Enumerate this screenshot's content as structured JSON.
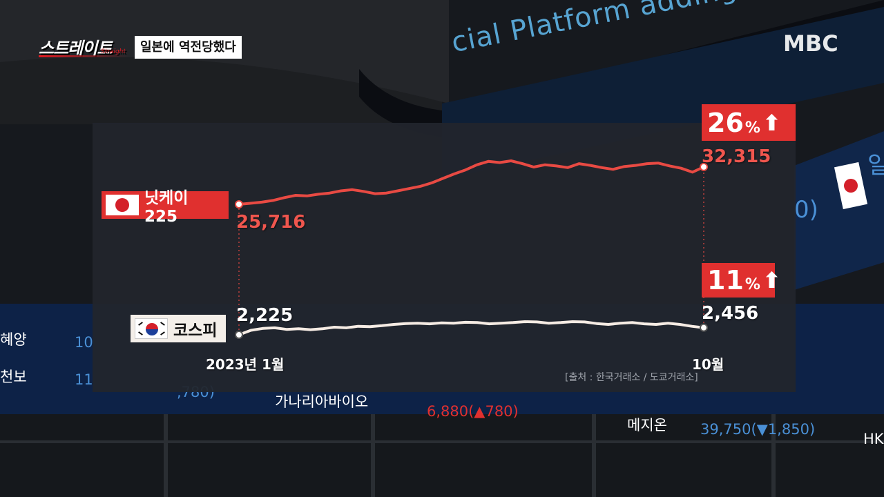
{
  "show": {
    "logo": "스트레이트",
    "logo_sub": "Straight",
    "episode_title": "일본에 역전당했다"
  },
  "broadcaster": "MBC",
  "background": {
    "scrolling_text": "cial Platform adding Value through In",
    "ticker": [
      {
        "text": "혜양",
        "color": "#ffffff"
      },
      {
        "text": "10",
        "color": "#4a90d6"
      },
      {
        "text": "천보",
        "color": "#ffffff"
      },
      {
        "text": "11",
        "color": "#4a90d6"
      },
      {
        "text": ",780)",
        "color": "#4a90d6"
      },
      {
        "text": "가나리아바이오",
        "color": "#ffffff"
      },
      {
        "text": "6,880(▲780)",
        "color": "#e0302f"
      },
      {
        "text": "메지온",
        "color": "#ffffff"
      },
      {
        "text": "39,750(▼1,850)",
        "color": "#4a90d6"
      },
      {
        "text": "HK",
        "color": "#ffffff"
      }
    ],
    "side_text": [
      "0)",
      "일"
    ]
  },
  "chart_data": {
    "type": "line",
    "x_start_label": "2023년 1월",
    "x_end_label": "10월",
    "source": "[출처 : 한국거래소 / 도쿄거래소]",
    "series": [
      {
        "name": "닛케이 225",
        "country": "Japan",
        "color": "#e84a43",
        "start_value": "25,716",
        "end_value": "32,315",
        "change_badge": {
          "number": "26",
          "unit": "%",
          "arrow": "⬆"
        },
        "values": [
          25716,
          25900,
          26100,
          26400,
          26900,
          27300,
          27200,
          27500,
          27700,
          28100,
          28300,
          28000,
          27600,
          27700,
          28100,
          28500,
          28900,
          29500,
          30300,
          31100,
          31800,
          32700,
          33300,
          33100,
          33400,
          32900,
          32300,
          32700,
          32500,
          32200,
          32900,
          32600,
          32200,
          31900,
          32400,
          32600,
          32900,
          33000,
          32500,
          32100,
          31400,
          32315
        ]
      },
      {
        "name": "코스피",
        "country": "Korea",
        "color": "#f6ece4",
        "start_value": "2,225",
        "end_value": "2,456",
        "change_badge": {
          "number": "11",
          "unit": "%",
          "arrow": "⬆"
        },
        "values": [
          2225,
          2370,
          2430,
          2450,
          2400,
          2420,
          2390,
          2420,
          2470,
          2450,
          2500,
          2490,
          2520,
          2560,
          2590,
          2600,
          2580,
          2610,
          2600,
          2630,
          2620,
          2580,
          2600,
          2620,
          2650,
          2640,
          2600,
          2620,
          2650,
          2640,
          2590,
          2560,
          2600,
          2620,
          2580,
          2560,
          2600,
          2560,
          2500,
          2456
        ]
      }
    ]
  }
}
